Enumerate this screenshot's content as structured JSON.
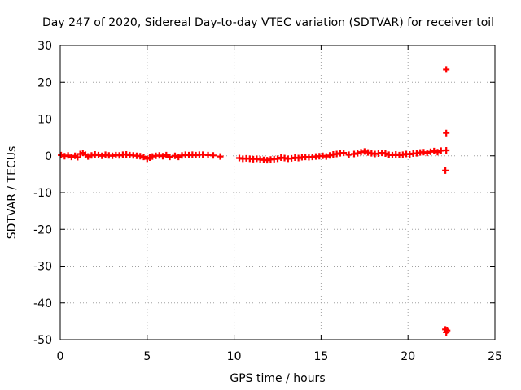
{
  "chart_data": {
    "type": "scatter",
    "title": "Day 247 of 2020, Sidereal Day-to-day VTEC variation (SDTVAR) for receiver toil",
    "xlabel": "GPS time / hours",
    "ylabel": "SDTVAR / TECUs",
    "xlim": [
      0,
      25
    ],
    "ylim": [
      -50,
      30
    ],
    "xticks": [
      0,
      5,
      10,
      15,
      20,
      25
    ],
    "yticks": [
      -50,
      -40,
      -30,
      -20,
      -10,
      0,
      10,
      20,
      30
    ],
    "grid": true,
    "marker": "plus",
    "color": "#ff0000",
    "series": [
      {
        "name": "SDTVAR",
        "points": [
          [
            0.05,
            0.2
          ],
          [
            0.25,
            -0.1
          ],
          [
            0.45,
            0.1
          ],
          [
            0.65,
            -0.3
          ],
          [
            0.85,
            0.0
          ],
          [
            1.0,
            -0.4
          ],
          [
            1.15,
            0.5
          ],
          [
            1.3,
            0.8
          ],
          [
            1.45,
            0.3
          ],
          [
            1.6,
            -0.2
          ],
          [
            1.8,
            0.1
          ],
          [
            2.0,
            0.4
          ],
          [
            2.2,
            0.2
          ],
          [
            2.4,
            0.0
          ],
          [
            2.6,
            0.3
          ],
          [
            2.8,
            0.1
          ],
          [
            3.0,
            0.0
          ],
          [
            3.2,
            0.2
          ],
          [
            3.4,
            0.1
          ],
          [
            3.6,
            0.3
          ],
          [
            3.8,
            0.4
          ],
          [
            4.0,
            0.2
          ],
          [
            4.2,
            0.1
          ],
          [
            4.4,
            0.0
          ],
          [
            4.6,
            -0.1
          ],
          [
            4.8,
            -0.3
          ],
          [
            5.0,
            -0.8
          ],
          [
            5.15,
            -0.5
          ],
          [
            5.3,
            -0.2
          ],
          [
            5.5,
            0.0
          ],
          [
            5.7,
            0.1
          ],
          [
            5.9,
            -0.1
          ],
          [
            6.1,
            0.2
          ],
          [
            6.3,
            -0.3
          ],
          [
            6.6,
            0.0
          ],
          [
            6.8,
            -0.3
          ],
          [
            7.0,
            0.1
          ],
          [
            7.2,
            0.3
          ],
          [
            7.4,
            0.2
          ],
          [
            7.6,
            0.3
          ],
          [
            7.8,
            0.2
          ],
          [
            8.0,
            0.3
          ],
          [
            8.2,
            0.3
          ],
          [
            8.5,
            0.2
          ],
          [
            8.8,
            0.1
          ],
          [
            9.2,
            -0.2
          ],
          [
            10.3,
            -0.6
          ],
          [
            10.5,
            -0.8
          ],
          [
            10.7,
            -0.7
          ],
          [
            10.9,
            -0.8
          ],
          [
            11.1,
            -0.9
          ],
          [
            11.3,
            -0.8
          ],
          [
            11.5,
            -1.0
          ],
          [
            11.7,
            -1.1
          ],
          [
            11.9,
            -1.2
          ],
          [
            12.1,
            -1.0
          ],
          [
            12.3,
            -0.9
          ],
          [
            12.5,
            -0.8
          ],
          [
            12.7,
            -0.5
          ],
          [
            12.9,
            -0.6
          ],
          [
            13.1,
            -0.8
          ],
          [
            13.3,
            -0.7
          ],
          [
            13.5,
            -0.5
          ],
          [
            13.7,
            -0.6
          ],
          [
            13.9,
            -0.4
          ],
          [
            14.1,
            -0.3
          ],
          [
            14.3,
            -0.4
          ],
          [
            14.5,
            -0.3
          ],
          [
            14.7,
            -0.2
          ],
          [
            14.9,
            -0.1
          ],
          [
            15.1,
            0.0
          ],
          [
            15.3,
            -0.2
          ],
          [
            15.5,
            0.1
          ],
          [
            15.7,
            0.4
          ],
          [
            15.9,
            0.5
          ],
          [
            16.1,
            0.7
          ],
          [
            16.3,
            0.8
          ],
          [
            16.6,
            0.3
          ],
          [
            16.9,
            0.5
          ],
          [
            17.1,
            0.7
          ],
          [
            17.3,
            1.0
          ],
          [
            17.5,
            1.2
          ],
          [
            17.7,
            0.9
          ],
          [
            17.9,
            0.7
          ],
          [
            18.1,
            0.5
          ],
          [
            18.3,
            0.6
          ],
          [
            18.5,
            0.8
          ],
          [
            18.7,
            0.6
          ],
          [
            18.9,
            0.3
          ],
          [
            19.1,
            0.2
          ],
          [
            19.3,
            0.4
          ],
          [
            19.5,
            0.2
          ],
          [
            19.7,
            0.3
          ],
          [
            19.9,
            0.5
          ],
          [
            20.1,
            0.4
          ],
          [
            20.3,
            0.6
          ],
          [
            20.5,
            0.7
          ],
          [
            20.7,
            0.9
          ],
          [
            20.9,
            1.0
          ],
          [
            21.1,
            0.8
          ],
          [
            21.3,
            1.1
          ],
          [
            21.5,
            1.3
          ],
          [
            21.7,
            1.0
          ],
          [
            21.9,
            1.4
          ],
          [
            22.2,
            23.5
          ],
          [
            22.2,
            6.2
          ],
          [
            22.2,
            1.5
          ],
          [
            22.15,
            -4.0
          ],
          [
            22.15,
            -47.2
          ],
          [
            22.2,
            -48.0
          ],
          [
            22.25,
            -47.5
          ]
        ]
      }
    ]
  }
}
